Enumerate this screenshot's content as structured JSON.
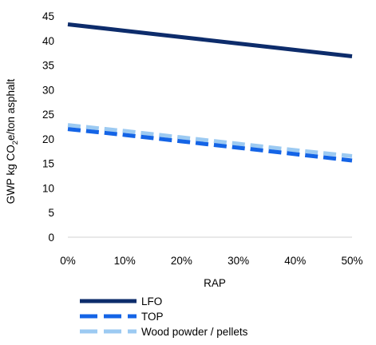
{
  "chart_data": {
    "type": "line",
    "x": [
      0,
      0.1,
      0.2,
      0.3,
      0.4,
      0.5
    ],
    "xticks": [
      "0%",
      "10%",
      "20%",
      "30%",
      "40%",
      "50%"
    ],
    "xlim": [
      0,
      0.5
    ],
    "ylim": [
      0,
      45
    ],
    "yticks": [
      0,
      5,
      10,
      15,
      20,
      25,
      30,
      35,
      40,
      45
    ],
    "xlabel": "RAP",
    "ylabel_parts": {
      "pre": "GWP kg CO",
      "sub": "2",
      "post": "e/ton asphalt"
    },
    "grid": false,
    "legend_position": "bottom",
    "series": [
      {
        "name": "LFO",
        "color": "#0d2c6b",
        "dash": "solid",
        "values": [
          43.3,
          42.0,
          40.7,
          39.4,
          38.1,
          36.8
        ]
      },
      {
        "name": "TOP",
        "color": "#1464e6",
        "dash": "dashed",
        "values": [
          22.0,
          20.8,
          19.5,
          18.2,
          16.9,
          15.6
        ]
      },
      {
        "name": "Wood powder / pellets",
        "color": "#9ccaf2",
        "dash": "dashed",
        "values": [
          22.8,
          21.6,
          20.3,
          19.0,
          17.7,
          16.5
        ]
      }
    ]
  }
}
